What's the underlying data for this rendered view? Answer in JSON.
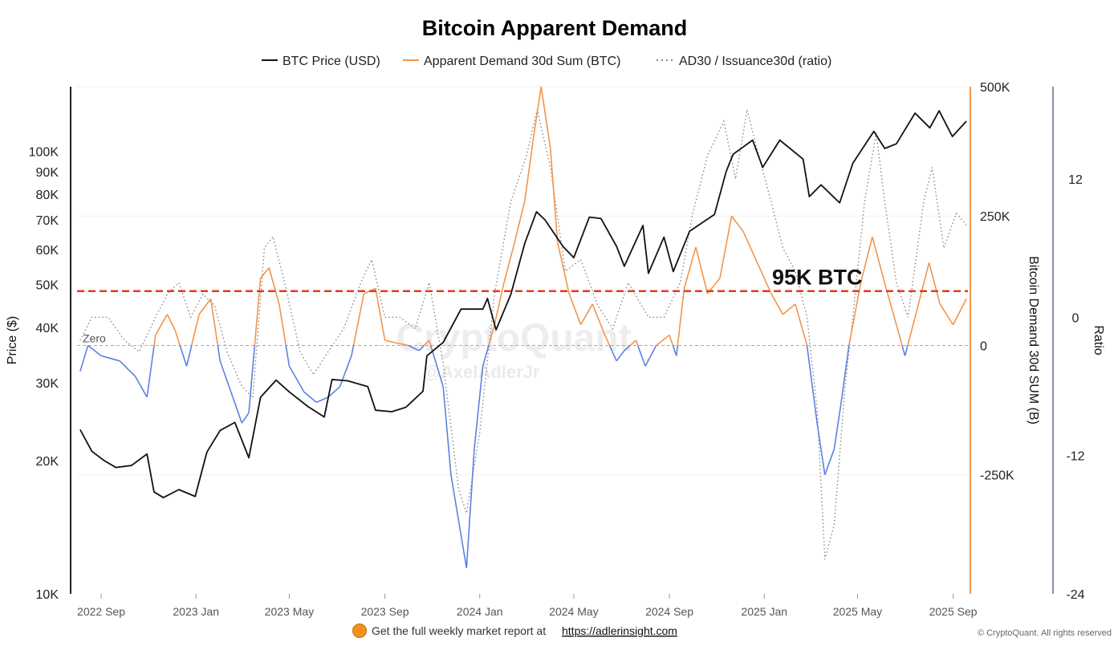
{
  "footer": {
    "text": "Get the full weekly market report at",
    "link": "https://adlerinsight.com",
    "copyright": "© CryptoQuant. All rights reserved"
  },
  "watermark": {
    "main": "CryptoQuant",
    "sub": "@AxelAdlerJr"
  },
  "colors": {
    "price": "#111111",
    "demand_positive": "#f2954b",
    "demand_negative": "#5b82e0",
    "ratio": "#888888",
    "threshold": "#e63b1c",
    "zero": "#aaaaaa"
  },
  "chart_data": {
    "type": "line",
    "title": "Bitcoin Apparent Demand",
    "legend_position": "top-center",
    "legend": [
      {
        "label": "BTC Price (USD)",
        "style": "solid",
        "color": "#111111"
      },
      {
        "label": "Apparent Demand 30d Sum (BTC)",
        "style": "solid",
        "color": "#f2954b"
      },
      {
        "label": "AD30 / Issuance30d (ratio)",
        "style": "dotted",
        "color": "#888888"
      }
    ],
    "x_ticks": [
      "2022 Sep",
      "2023 Jan",
      "2023 May",
      "2023 Sep",
      "2024 Jan",
      "2024 May",
      "2024 Sep",
      "2025 Jan",
      "2025 May",
      "2025 Sep"
    ],
    "x_range": [
      "2022-08-01",
      "2025-09-20"
    ],
    "y_left": {
      "label": "Price ($)",
      "scale": "log",
      "range": [
        10000,
        140000
      ],
      "ticks": [
        "10K",
        "20K",
        "30K",
        "40K",
        "50K",
        "60K",
        "70K",
        "80K",
        "90K",
        "100K"
      ]
    },
    "y_right1": {
      "label": "Bitcoin Demand 30d SUM (B)",
      "range": [
        -480000,
        500000
      ],
      "ticks": [
        "500K",
        "250K",
        "0",
        "-250K"
      ]
    },
    "y_right2": {
      "label": "Ratio",
      "range": [
        -24,
        20
      ],
      "ticks": [
        "12",
        "0",
        "-12",
        "-24"
      ]
    },
    "zero_label": "Zero",
    "annotation": {
      "text": "95K BTC",
      "value": 105000
    },
    "series": [
      {
        "name": "BTC Price (USD)",
        "axis": "left",
        "points": [
          [
            "2022-08-05",
            23500
          ],
          [
            "2022-08-20",
            21000
          ],
          [
            "2022-09-05",
            20000
          ],
          [
            "2022-09-20",
            19300
          ],
          [
            "2022-10-10",
            19500
          ],
          [
            "2022-10-30",
            20700
          ],
          [
            "2022-11-08",
            17000
          ],
          [
            "2022-11-20",
            16500
          ],
          [
            "2022-12-10",
            17200
          ],
          [
            "2022-12-31",
            16600
          ],
          [
            "2023-01-15",
            20900
          ],
          [
            "2023-02-01",
            23400
          ],
          [
            "2023-02-20",
            24400
          ],
          [
            "2023-03-10",
            20300
          ],
          [
            "2023-03-25",
            27800
          ],
          [
            "2023-04-14",
            30400
          ],
          [
            "2023-05-01",
            28600
          ],
          [
            "2023-05-25",
            26500
          ],
          [
            "2023-06-15",
            25100
          ],
          [
            "2023-06-25",
            30500
          ],
          [
            "2023-07-15",
            30300
          ],
          [
            "2023-08-10",
            29400
          ],
          [
            "2023-08-20",
            26000
          ],
          [
            "2023-09-10",
            25800
          ],
          [
            "2023-09-28",
            26400
          ],
          [
            "2023-10-20",
            28700
          ],
          [
            "2023-10-25",
            34500
          ],
          [
            "2023-11-15",
            37000
          ],
          [
            "2023-12-08",
            44000
          ],
          [
            "2024-01-05",
            44000
          ],
          [
            "2024-01-11",
            46500
          ],
          [
            "2024-01-22",
            39500
          ],
          [
            "2024-02-10",
            47500
          ],
          [
            "2024-02-28",
            62000
          ],
          [
            "2024-03-14",
            73000
          ],
          [
            "2024-03-25",
            70000
          ],
          [
            "2024-04-17",
            61000
          ],
          [
            "2024-05-01",
            57500
          ],
          [
            "2024-05-21",
            71000
          ],
          [
            "2024-06-05",
            70500
          ],
          [
            "2024-06-25",
            61000
          ],
          [
            "2024-07-05",
            55000
          ],
          [
            "2024-07-29",
            68000
          ],
          [
            "2024-08-05",
            53000
          ],
          [
            "2024-08-25",
            64000
          ],
          [
            "2024-09-06",
            53500
          ],
          [
            "2024-09-27",
            66000
          ],
          [
            "2024-10-29",
            72000
          ],
          [
            "2024-11-13",
            90000
          ],
          [
            "2024-11-22",
            98500
          ],
          [
            "2024-12-17",
            106000
          ],
          [
            "2024-12-30",
            92000
          ],
          [
            "2025-01-21",
            106000
          ],
          [
            "2025-02-20",
            96000
          ],
          [
            "2025-02-28",
            79000
          ],
          [
            "2025-03-15",
            84000
          ],
          [
            "2025-04-08",
            76500
          ],
          [
            "2025-04-25",
            94000
          ],
          [
            "2025-05-22",
            111000
          ],
          [
            "2025-06-05",
            101500
          ],
          [
            "2025-06-20",
            104000
          ],
          [
            "2025-07-14",
            122000
          ],
          [
            "2025-08-02",
            113000
          ],
          [
            "2025-08-14",
            123500
          ],
          [
            "2025-08-31",
            108000
          ],
          [
            "2025-09-18",
            117000
          ]
        ]
      },
      {
        "name": "Apparent Demand 30d Sum (BTC)",
        "axis": "right1",
        "points": [
          [
            "2022-08-05",
            -50000
          ],
          [
            "2022-08-15",
            0
          ],
          [
            "2022-09-01",
            -20000
          ],
          [
            "2022-09-25",
            -30000
          ],
          [
            "2022-10-15",
            -60000
          ],
          [
            "2022-10-30",
            -100000
          ],
          [
            "2022-11-10",
            20000
          ],
          [
            "2022-11-25",
            60000
          ],
          [
            "2022-12-05",
            30000
          ],
          [
            "2022-12-20",
            -40000
          ],
          [
            "2023-01-05",
            60000
          ],
          [
            "2023-01-20",
            90000
          ],
          [
            "2023-02-01",
            -30000
          ],
          [
            "2023-02-15",
            -90000
          ],
          [
            "2023-03-01",
            -150000
          ],
          [
            "2023-03-10",
            -130000
          ],
          [
            "2023-03-25",
            130000
          ],
          [
            "2023-04-05",
            150000
          ],
          [
            "2023-04-18",
            80000
          ],
          [
            "2023-05-01",
            -40000
          ],
          [
            "2023-05-20",
            -90000
          ],
          [
            "2023-06-05",
            -110000
          ],
          [
            "2023-06-20",
            -100000
          ],
          [
            "2023-07-05",
            -80000
          ],
          [
            "2023-07-20",
            -20000
          ],
          [
            "2023-08-05",
            100000
          ],
          [
            "2023-08-20",
            110000
          ],
          [
            "2023-09-01",
            10000
          ],
          [
            "2023-09-15",
            5000
          ],
          [
            "2023-10-01",
            0
          ],
          [
            "2023-10-15",
            -10000
          ],
          [
            "2023-10-28",
            10000
          ],
          [
            "2023-11-15",
            -80000
          ],
          [
            "2023-11-25",
            -250000
          ],
          [
            "2023-12-05",
            -340000
          ],
          [
            "2023-12-15",
            -430000
          ],
          [
            "2023-12-25",
            -200000
          ],
          [
            "2024-01-05",
            -40000
          ],
          [
            "2024-01-20",
            40000
          ],
          [
            "2024-02-01",
            120000
          ],
          [
            "2024-02-15",
            200000
          ],
          [
            "2024-02-28",
            280000
          ],
          [
            "2024-03-10",
            400000
          ],
          [
            "2024-03-20",
            500000
          ],
          [
            "2024-04-01",
            380000
          ],
          [
            "2024-04-10",
            200000
          ],
          [
            "2024-04-25",
            100000
          ],
          [
            "2024-05-10",
            40000
          ],
          [
            "2024-05-25",
            80000
          ],
          [
            "2024-06-10",
            20000
          ],
          [
            "2024-06-25",
            -30000
          ],
          [
            "2024-07-05",
            -10000
          ],
          [
            "2024-07-20",
            10000
          ],
          [
            "2024-08-01",
            -40000
          ],
          [
            "2024-08-15",
            0
          ],
          [
            "2024-09-01",
            20000
          ],
          [
            "2024-09-10",
            -20000
          ],
          [
            "2024-09-20",
            110000
          ],
          [
            "2024-10-05",
            190000
          ],
          [
            "2024-10-20",
            100000
          ],
          [
            "2024-11-05",
            130000
          ],
          [
            "2024-11-20",
            250000
          ],
          [
            "2024-12-05",
            220000
          ],
          [
            "2024-12-20",
            170000
          ],
          [
            "2025-01-10",
            100000
          ],
          [
            "2025-01-25",
            60000
          ],
          [
            "2025-02-10",
            80000
          ],
          [
            "2025-02-25",
            0
          ],
          [
            "2025-03-10",
            -150000
          ],
          [
            "2025-03-20",
            -250000
          ],
          [
            "2025-04-01",
            -200000
          ],
          [
            "2025-04-10",
            -110000
          ],
          [
            "2025-04-20",
            0
          ],
          [
            "2025-05-05",
            120000
          ],
          [
            "2025-05-20",
            210000
          ],
          [
            "2025-06-05",
            120000
          ],
          [
            "2025-06-20",
            40000
          ],
          [
            "2025-07-01",
            -20000
          ],
          [
            "2025-07-15",
            60000
          ],
          [
            "2025-08-01",
            160000
          ],
          [
            "2025-08-15",
            80000
          ],
          [
            "2025-09-01",
            40000
          ],
          [
            "2025-09-18",
            90000
          ]
        ]
      },
      {
        "name": "AD30 / Issuance30d (ratio)",
        "axis": "right2",
        "points": [
          [
            "2022-08-05",
            -2
          ],
          [
            "2022-08-20",
            0
          ],
          [
            "2022-09-10",
            0
          ],
          [
            "2022-10-01",
            -2
          ],
          [
            "2022-10-20",
            -3
          ],
          [
            "2022-11-10",
            0
          ],
          [
            "2022-11-25",
            2
          ],
          [
            "2022-12-10",
            3
          ],
          [
            "2022-12-25",
            0
          ],
          [
            "2023-01-10",
            2
          ],
          [
            "2023-01-25",
            1
          ],
          [
            "2023-02-10",
            -3
          ],
          [
            "2023-03-01",
            -6
          ],
          [
            "2023-03-15",
            -7
          ],
          [
            "2023-03-30",
            6
          ],
          [
            "2023-04-10",
            7
          ],
          [
            "2023-04-25",
            3
          ],
          [
            "2023-05-15",
            -3
          ],
          [
            "2023-06-01",
            -5
          ],
          [
            "2023-06-20",
            -3
          ],
          [
            "2023-07-10",
            -1
          ],
          [
            "2023-08-01",
            3
          ],
          [
            "2023-08-15",
            5
          ],
          [
            "2023-09-01",
            0
          ],
          [
            "2023-09-20",
            0
          ],
          [
            "2023-10-10",
            -1
          ],
          [
            "2023-10-28",
            3
          ],
          [
            "2023-11-15",
            -4
          ],
          [
            "2023-12-05",
            -15
          ],
          [
            "2023-12-15",
            -17
          ],
          [
            "2024-01-01",
            -10
          ],
          [
            "2024-01-20",
            2
          ],
          [
            "2024-02-10",
            10
          ],
          [
            "2024-03-01",
            14
          ],
          [
            "2024-03-15",
            18
          ],
          [
            "2024-04-01",
            13
          ],
          [
            "2024-04-20",
            4
          ],
          [
            "2024-05-10",
            5
          ],
          [
            "2024-06-01",
            1
          ],
          [
            "2024-06-20",
            -1
          ],
          [
            "2024-07-10",
            3
          ],
          [
            "2024-08-05",
            0
          ],
          [
            "2024-08-25",
            0
          ],
          [
            "2024-09-15",
            3
          ],
          [
            "2024-10-01",
            9
          ],
          [
            "2024-10-20",
            14
          ],
          [
            "2024-11-10",
            17
          ],
          [
            "2024-11-25",
            12
          ],
          [
            "2024-12-10",
            18
          ],
          [
            "2024-12-25",
            14
          ],
          [
            "2025-01-10",
            10
          ],
          [
            "2025-01-25",
            6
          ],
          [
            "2025-02-10",
            4
          ],
          [
            "2025-02-25",
            0
          ],
          [
            "2025-03-10",
            -8
          ],
          [
            "2025-03-20",
            -21
          ],
          [
            "2025-04-01",
            -18
          ],
          [
            "2025-04-15",
            -6
          ],
          [
            "2025-04-25",
            0
          ],
          [
            "2025-05-10",
            10
          ],
          [
            "2025-05-25",
            16
          ],
          [
            "2025-06-05",
            10
          ],
          [
            "2025-06-20",
            3
          ],
          [
            "2025-07-05",
            0
          ],
          [
            "2025-07-25",
            10
          ],
          [
            "2025-08-05",
            13
          ],
          [
            "2025-08-20",
            6
          ],
          [
            "2025-09-05",
            9
          ],
          [
            "2025-09-18",
            8
          ]
        ]
      }
    ]
  }
}
